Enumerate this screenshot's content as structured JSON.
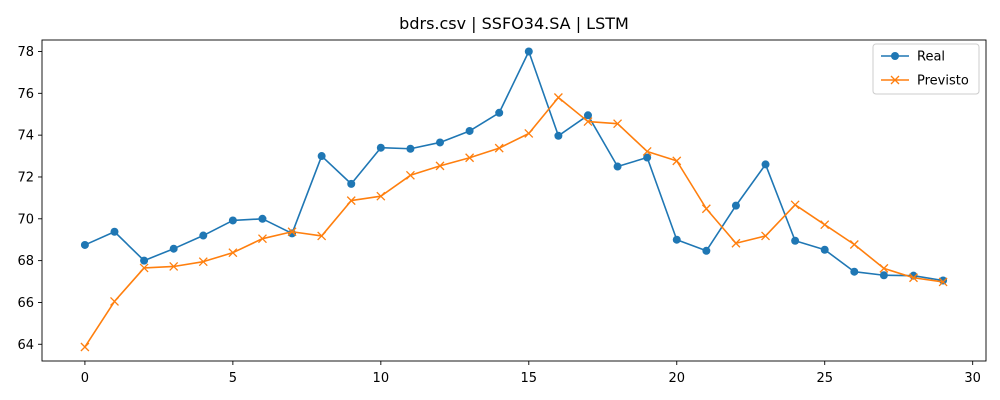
{
  "chart_data": {
    "type": "line",
    "title": "bdrs.csv | SSFO34.SA | LSTM",
    "xlabel": "",
    "ylabel": "",
    "x": [
      0,
      1,
      2,
      3,
      4,
      5,
      6,
      7,
      8,
      9,
      10,
      11,
      12,
      13,
      14,
      15,
      16,
      17,
      18,
      19,
      20,
      21,
      22,
      23,
      24,
      25,
      26,
      27,
      28,
      29
    ],
    "xlim": [
      -1.45,
      30.45
    ],
    "ylim": [
      63.2,
      78.55
    ],
    "xticks": [
      0,
      5,
      10,
      15,
      20,
      25,
      30
    ],
    "yticks": [
      64,
      66,
      68,
      70,
      72,
      74,
      76,
      78
    ],
    "grid": false,
    "legend_position": "top-right",
    "series": [
      {
        "name": "Real",
        "color": "#1f77b4",
        "marker": "circle",
        "values": [
          68.75,
          69.38,
          68.0,
          68.57,
          69.2,
          69.92,
          70.0,
          69.3,
          73.0,
          71.67,
          73.4,
          73.35,
          73.65,
          74.2,
          75.07,
          78.0,
          73.97,
          74.95,
          72.5,
          72.93,
          69.0,
          68.47,
          70.63,
          72.6,
          68.95,
          68.52,
          67.47,
          67.3,
          67.28,
          67.05
        ]
      },
      {
        "name": "Previsto",
        "color": "#ff7f0e",
        "marker": "x",
        "values": [
          63.87,
          66.05,
          67.65,
          67.72,
          67.95,
          68.38,
          69.05,
          69.38,
          69.18,
          70.87,
          71.08,
          72.08,
          72.53,
          72.92,
          73.38,
          74.08,
          75.8,
          74.65,
          74.55,
          73.22,
          72.77,
          70.48,
          68.83,
          69.18,
          70.67,
          69.72,
          68.77,
          67.63,
          67.18,
          66.98
        ]
      }
    ]
  }
}
